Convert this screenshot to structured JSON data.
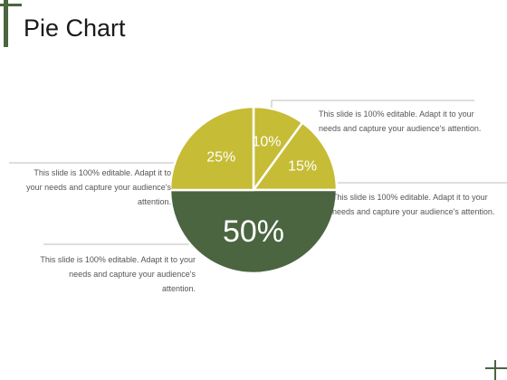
{
  "slide": {
    "title": "Pie Chart"
  },
  "colors": {
    "accent_dark": "#4a6540",
    "accent_light": "#c6bc36",
    "leader_line": "#bdbdbd",
    "text": "#555555"
  },
  "chart_data": {
    "type": "pie",
    "labels": [
      "10%",
      "15%",
      "50%",
      "25%"
    ],
    "values": [
      10,
      15,
      50,
      25
    ],
    "slice_colors": [
      "#c6bc36",
      "#c6bc36",
      "#4a6540",
      "#c6bc36"
    ]
  },
  "callouts": {
    "slice_10": "This slide is 100% editable. Adapt it to your needs and capture your audience's attention.",
    "slice_15": "This slide is 100% editable. Adapt it to your needs and capture your audience's attention.",
    "slice_25": "This slide is 100% editable. Adapt it to your needs and capture your audience's attention.",
    "slice_50": "This slide is 100% editable. Adapt it to your needs and capture your audience's attention."
  }
}
